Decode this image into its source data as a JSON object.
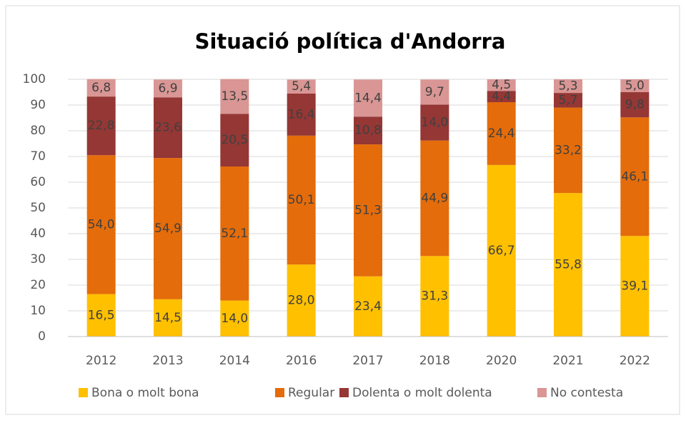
{
  "chart_data": {
    "type": "stacked_bar",
    "title": "Situació política d'Andorra",
    "categories": [
      "2012",
      "2013",
      "2014",
      "2016",
      "2017",
      "2018",
      "2020",
      "2021",
      "2022"
    ],
    "series": [
      {
        "name": "Bona o molt bona",
        "color": "#ffc000",
        "values": [
          16.5,
          14.5,
          14.0,
          28.0,
          23.4,
          31.3,
          66.7,
          55.8,
          39.1
        ],
        "value_labels": [
          "16,5",
          "14,5",
          "14,0",
          "28,0",
          "23,4",
          "31,3",
          "66,7",
          "55,8",
          "39,1"
        ]
      },
      {
        "name": "Regular",
        "color": "#e46c0a",
        "values": [
          54.0,
          54.9,
          52.1,
          50.1,
          51.3,
          44.9,
          24.4,
          33.2,
          46.1
        ],
        "value_labels": [
          "54,0",
          "54,9",
          "52,1",
          "50,1",
          "51,3",
          "44,9",
          "24,4",
          "33,2",
          "46,1"
        ]
      },
      {
        "name": "Dolenta o molt dolenta",
        "color": "#953735",
        "values": [
          22.8,
          23.6,
          20.5,
          16.4,
          10.8,
          14.0,
          4.4,
          5.7,
          9.8
        ],
        "value_labels": [
          "22,8",
          "23,6",
          "20,5",
          "16,4",
          "10,8",
          "14,0",
          "4,4",
          "5,7",
          "9,8"
        ]
      },
      {
        "name": "No contesta",
        "color": "#d99694",
        "values": [
          6.8,
          6.9,
          13.5,
          5.4,
          14.4,
          9.7,
          4.5,
          5.3,
          5.0
        ],
        "value_labels": [
          "6,8",
          "6,9",
          "13,5",
          "5,4",
          "14,4",
          "9,7",
          "4,5",
          "5,3",
          "5,0"
        ]
      }
    ],
    "ylim": [
      0,
      100
    ],
    "yticks": [
      0,
      10,
      20,
      30,
      40,
      50,
      60,
      70,
      80,
      90,
      100
    ],
    "grid": true,
    "legend": "bottom"
  }
}
